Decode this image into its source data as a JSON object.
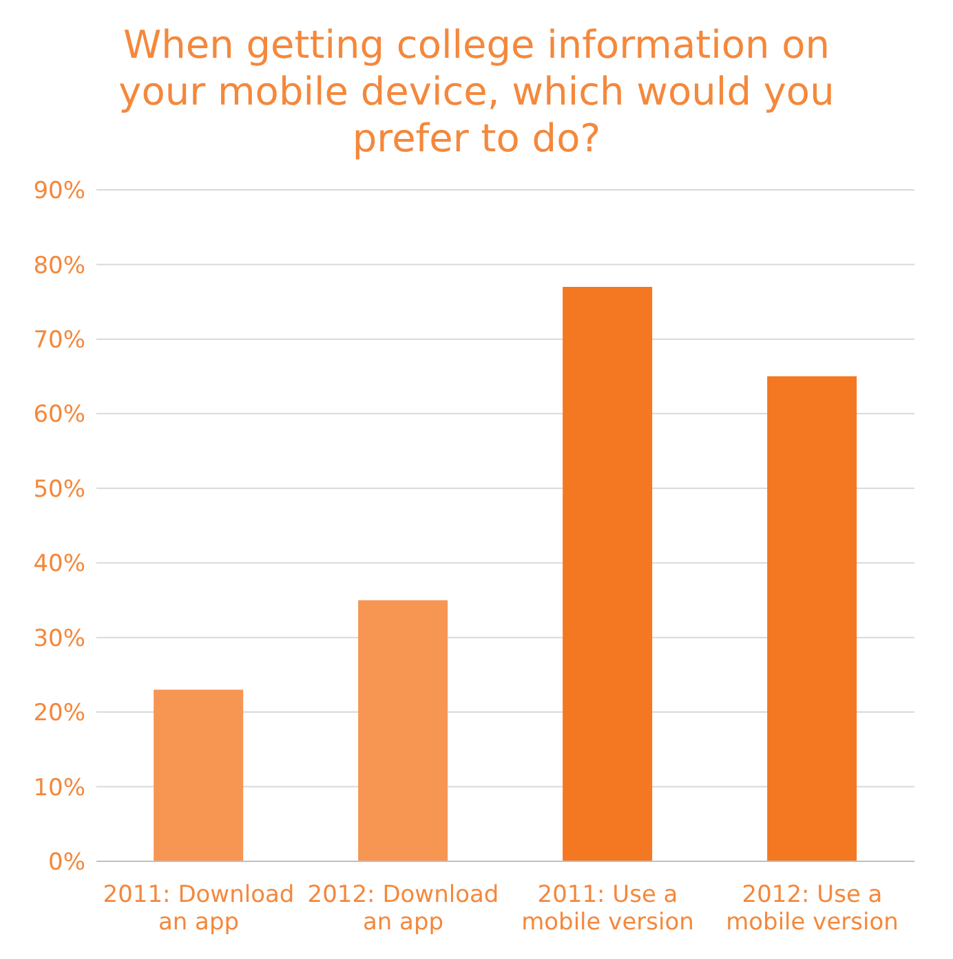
{
  "chart_data": {
    "type": "bar",
    "title": "When getting college information on your mobile device, which would you prefer to do?",
    "categories": [
      "2011: Download an app",
      "2012: Download an app",
      "2011: Use a mobile version",
      "2012: Use a mobile version"
    ],
    "values": [
      0.23,
      0.35,
      0.77,
      0.65
    ],
    "colors": [
      "#f79552",
      "#f79552",
      "#f47721",
      "#f47721"
    ],
    "ylim": [
      0,
      0.9
    ],
    "yticks": [
      {
        "value": 0,
        "label": "0%"
      },
      {
        "value": 0.1,
        "label": "10%"
      },
      {
        "value": 0.2,
        "label": "20%"
      },
      {
        "value": 0.3,
        "label": "30%"
      },
      {
        "value": 0.4,
        "label": "40%"
      },
      {
        "value": 0.5,
        "label": "50%"
      },
      {
        "value": 0.6,
        "label": "60%"
      },
      {
        "value": 0.7,
        "label": "70%"
      },
      {
        "value": 0.8,
        "label": "80%"
      },
      {
        "value": 0.9,
        "label": "90%"
      }
    ],
    "grid": "y"
  }
}
